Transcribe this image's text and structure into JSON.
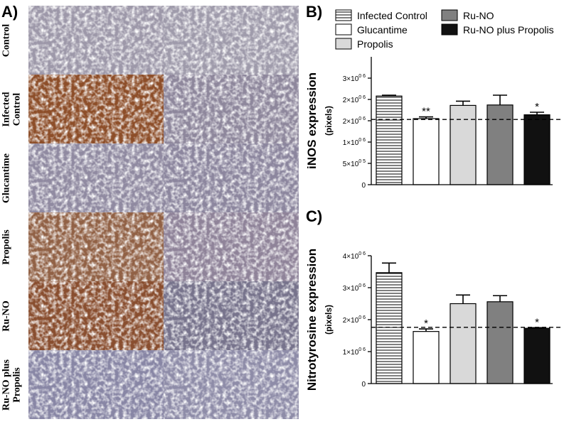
{
  "panels": {
    "a": "A)",
    "b": "B)",
    "c": "C)"
  },
  "micrographs": {
    "rows": [
      {
        "label_lines": [
          "Control"
        ],
        "stain_left": "#c9c3cc",
        "stain_right": "#cdc8d0",
        "brown_left": false,
        "brown_right": false
      },
      {
        "label_lines": [
          "Infected",
          "Control"
        ],
        "stain_left": "#a05a2e",
        "stain_right": "#b3a9b8",
        "brown_left": true,
        "brown_right": false
      },
      {
        "label_lines": [
          "Glucantime"
        ],
        "stain_left": "#b6aec0",
        "stain_right": "#b0a8bc",
        "brown_left": false,
        "brown_right": false
      },
      {
        "label_lines": [
          "Propolis"
        ],
        "stain_left": "#a7775a",
        "stain_right": "#b4a3b4",
        "brown_left": true,
        "brown_right": false
      },
      {
        "label_lines": [
          "Ru-NO"
        ],
        "stain_left": "#9a5a38",
        "stain_right": "#8f8aa0",
        "brown_left": true,
        "brown_right": false
      },
      {
        "label_lines": [
          "Ru-NO plus",
          "Propolis"
        ],
        "stain_left": "#a9a8c6",
        "stain_right": "#b3b1cb",
        "brown_left": false,
        "brown_right": false
      }
    ]
  },
  "legend": [
    {
      "label": "Infected Control",
      "fill": "#ffffff",
      "pattern": "hstripes"
    },
    {
      "label": "Glucantime",
      "fill": "#ffffff",
      "pattern": "none"
    },
    {
      "label": "Propolis",
      "fill": "#d9d9d9",
      "pattern": "none"
    },
    {
      "label": "Ru-NO",
      "fill": "#808080",
      "pattern": "none"
    },
    {
      "label": "Ru-NO plus Propolis",
      "fill": "#111111",
      "pattern": "none"
    }
  ],
  "chart_data": [
    {
      "type": "bar",
      "ylabel": "iNOS expression",
      "ylabel_sub": "(pixels)",
      "ylim": [
        0,
        3000000
      ],
      "yticks": [
        {
          "value": 0,
          "base": "0",
          "exp": ""
        },
        {
          "value": 500000,
          "base": "5×10",
          "exp": "0 5"
        },
        {
          "value": 1000000,
          "base": "1×10",
          "exp": "0 6"
        },
        {
          "value": 1500000,
          "base": "2×10",
          "exp": "0 6"
        },
        {
          "value": 2000000,
          "base": "2×10",
          "exp": "0 6"
        },
        {
          "value": 2500000,
          "base": "3×10",
          "exp": "0 6"
        }
      ],
      "categories": [
        "Infected Control",
        "Glucantime",
        "Propolis",
        "Ru-NO",
        "Ru-NO plus Propolis"
      ],
      "values": [
        2080000,
        1550000,
        1860000,
        1870000,
        1640000
      ],
      "errors": [
        20000,
        40000,
        100000,
        230000,
        60000
      ],
      "significance": [
        "",
        "**",
        "",
        "",
        "*"
      ],
      "reference_line": 1530000
    },
    {
      "type": "bar",
      "ylabel": "Nitrotyrosine expression",
      "ylabel_sub": "(pixels)",
      "ylim": [
        0,
        4000000
      ],
      "yticks": [
        {
          "value": 0,
          "base": "0",
          "exp": ""
        },
        {
          "value": 1000000,
          "base": "1×10",
          "exp": "0 6"
        },
        {
          "value": 2000000,
          "base": "2×10",
          "exp": "0 6"
        },
        {
          "value": 3000000,
          "base": "3×10",
          "exp": "0 6"
        },
        {
          "value": 4000000,
          "base": "4×10",
          "exp": "0 6"
        }
      ],
      "categories": [
        "Infected Control",
        "Glucantime",
        "Propolis",
        "Ru-NO",
        "Ru-NO plus Propolis"
      ],
      "values": [
        3470000,
        1630000,
        2500000,
        2560000,
        1730000
      ],
      "errors": [
        300000,
        80000,
        270000,
        190000,
        20000
      ],
      "significance": [
        "",
        "*",
        "",
        "",
        "*"
      ],
      "reference_line": 1760000
    }
  ]
}
